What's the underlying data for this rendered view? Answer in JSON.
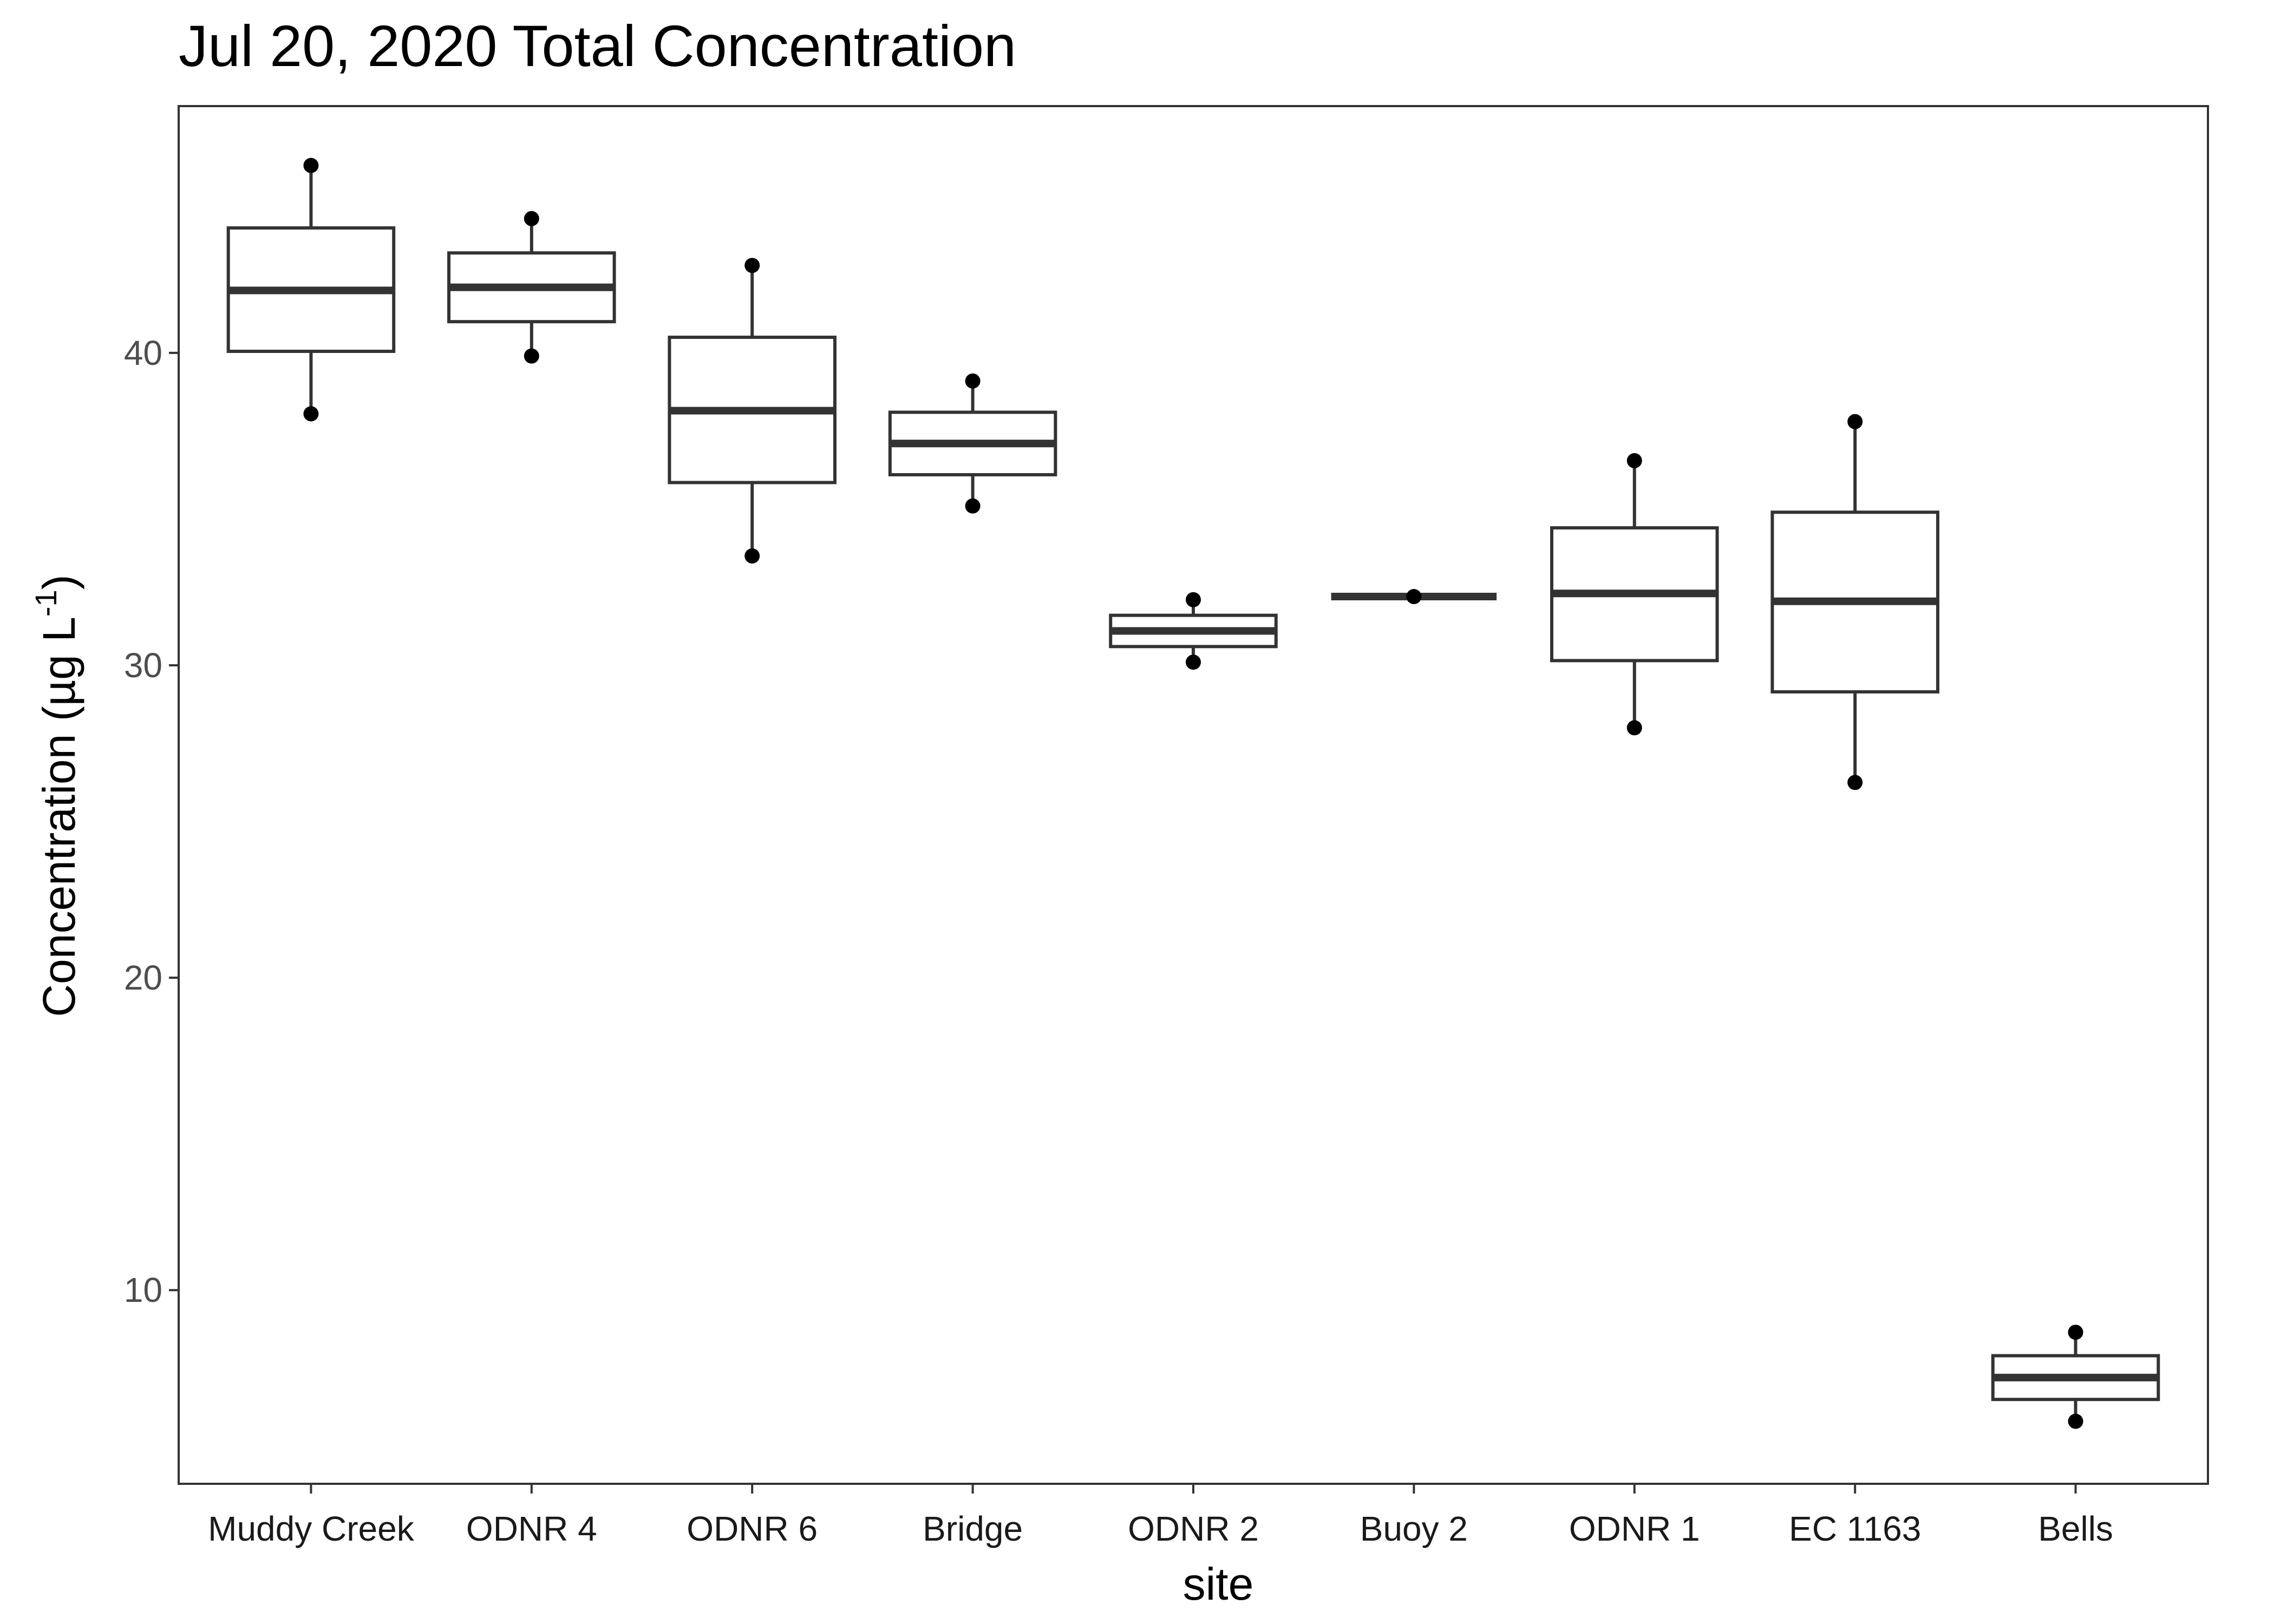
{
  "chart_data": {
    "type": "box",
    "title": "Jul 20, 2020 Total Concentration",
    "xlabel": "site",
    "ylabel": "Concentration (µg L",
    "ylabel_superscript": "-1",
    "ylabel_close": ")",
    "ylim": [
      3.8,
      47.9
    ],
    "yticks": [
      10,
      20,
      30,
      40
    ],
    "grid": false,
    "categories": [
      "Muddy Creek",
      "ODNR 4",
      "ODNR 6",
      "Bridge",
      "ODNR 2",
      "Buoy 2",
      "ODNR 1",
      "EC 1163",
      "Bells"
    ],
    "boxes": [
      {
        "site": "Muddy Creek",
        "min": 38.05,
        "q1": 40.05,
        "median": 42.0,
        "q3": 44.0,
        "max": 46.0,
        "points": [
          46.0,
          38.05
        ]
      },
      {
        "site": "ODNR 4",
        "min": 39.9,
        "q1": 41.0,
        "median": 42.1,
        "q3": 43.2,
        "max": 44.3,
        "points": [
          44.3,
          39.9
        ]
      },
      {
        "site": "ODNR 6",
        "min": 33.5,
        "q1": 35.85,
        "median": 38.15,
        "q3": 40.5,
        "max": 42.8,
        "points": [
          42.8,
          33.5
        ]
      },
      {
        "site": "Bridge",
        "min": 35.1,
        "q1": 36.1,
        "median": 37.1,
        "q3": 38.1,
        "max": 39.1,
        "points": [
          39.1,
          35.1
        ]
      },
      {
        "site": "ODNR 2",
        "min": 30.1,
        "q1": 30.6,
        "median": 31.1,
        "q3": 31.6,
        "max": 32.1,
        "points": [
          32.1,
          30.1
        ]
      },
      {
        "site": "Buoy 2",
        "min": 32.2,
        "q1": 32.2,
        "median": 32.2,
        "q3": 32.2,
        "max": 32.2,
        "points": [
          32.2
        ]
      },
      {
        "site": "ODNR 1",
        "min": 28.0,
        "q1": 30.15,
        "median": 32.3,
        "q3": 34.4,
        "max": 36.55,
        "points": [
          36.55,
          28.0
        ]
      },
      {
        "site": "EC 1163",
        "min": 26.25,
        "q1": 29.15,
        "median": 32.05,
        "q3": 34.9,
        "max": 37.8,
        "points": [
          37.8,
          26.25
        ]
      },
      {
        "site": "Bells",
        "min": 5.8,
        "q1": 6.5,
        "median": 7.2,
        "q3": 7.9,
        "max": 8.65,
        "points": [
          8.65,
          5.8
        ]
      }
    ]
  }
}
